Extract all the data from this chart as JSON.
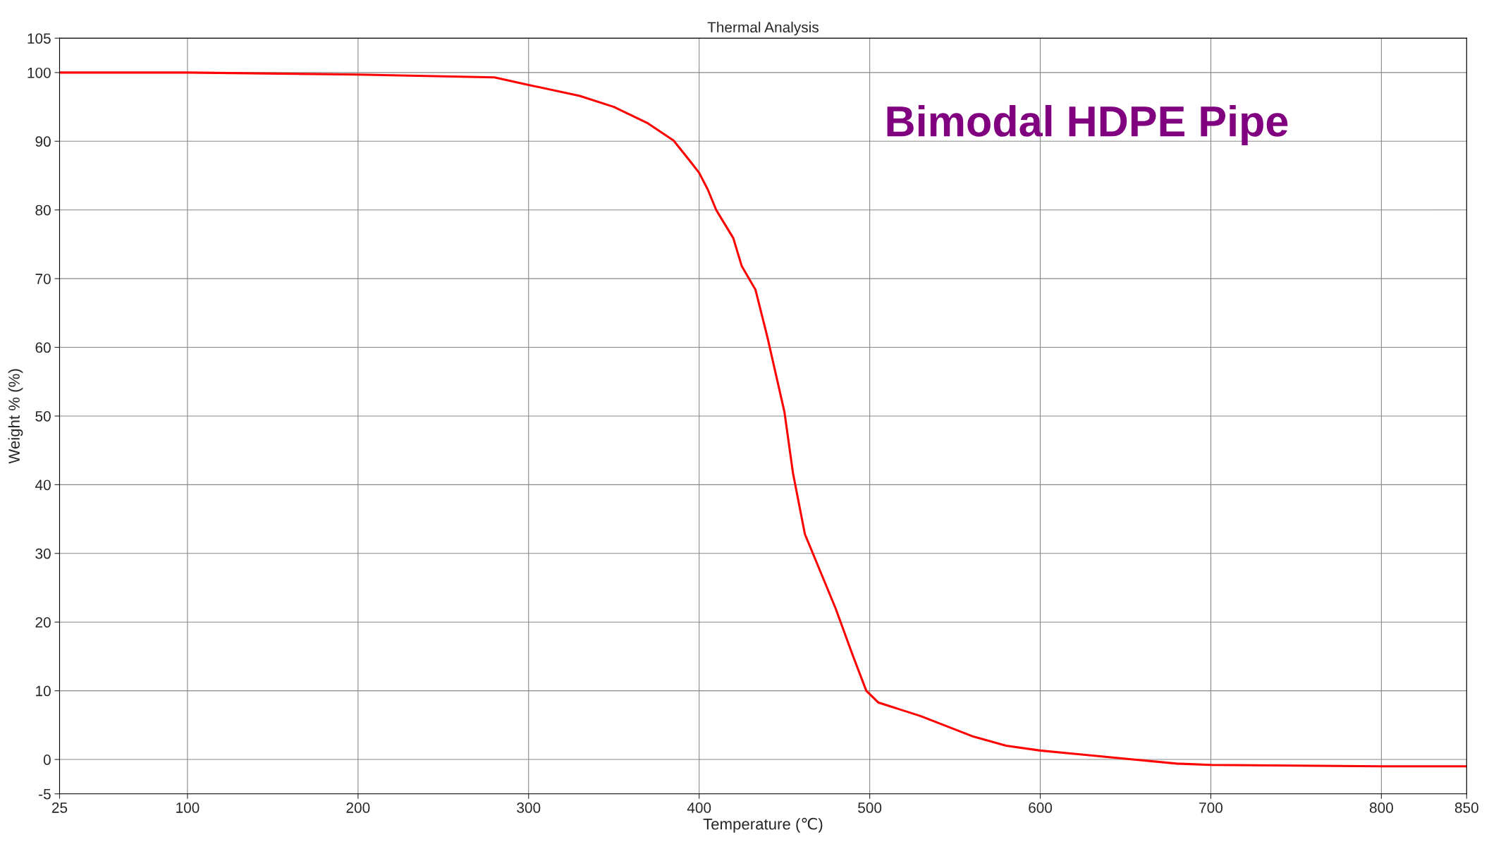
{
  "chart_data": {
    "type": "line",
    "title": "Thermal Analysis",
    "xlabel": "Temperature (℃)",
    "ylabel": "Weight % (%)",
    "annotations": [
      "Bimodal HDPE Pipe"
    ],
    "xlim": [
      25,
      850
    ],
    "xticks": [
      25,
      100,
      200,
      300,
      400,
      500,
      600,
      700,
      800,
      850
    ],
    "ylim": [
      -5,
      105
    ],
    "yticks": [
      -5,
      0,
      10,
      20,
      30,
      40,
      50,
      60,
      70,
      80,
      90,
      100,
      105
    ],
    "grid": true,
    "series": [
      {
        "color": "#ff0000",
        "x": [
          25,
          100,
          200,
          280,
          300,
          330,
          350,
          370,
          385,
          395,
          400,
          405,
          410,
          420,
          425,
          433,
          440,
          450,
          455,
          462,
          470,
          480,
          490,
          498,
          505,
          530,
          560,
          580,
          600,
          650,
          680,
          700,
          750,
          800,
          850
        ],
        "values": [
          100,
          100,
          99.7,
          99.3,
          98.2,
          96.6,
          95,
          92.6,
          90.1,
          87,
          85.4,
          83,
          80,
          75.9,
          71.8,
          68.4,
          61.5,
          50.6,
          41.7,
          32.8,
          28,
          22,
          15.2,
          10,
          8.3,
          6.3,
          3.4,
          2,
          1.3,
          0.1,
          -0.6,
          -0.8,
          -0.9,
          -1,
          -1
        ]
      }
    ]
  }
}
